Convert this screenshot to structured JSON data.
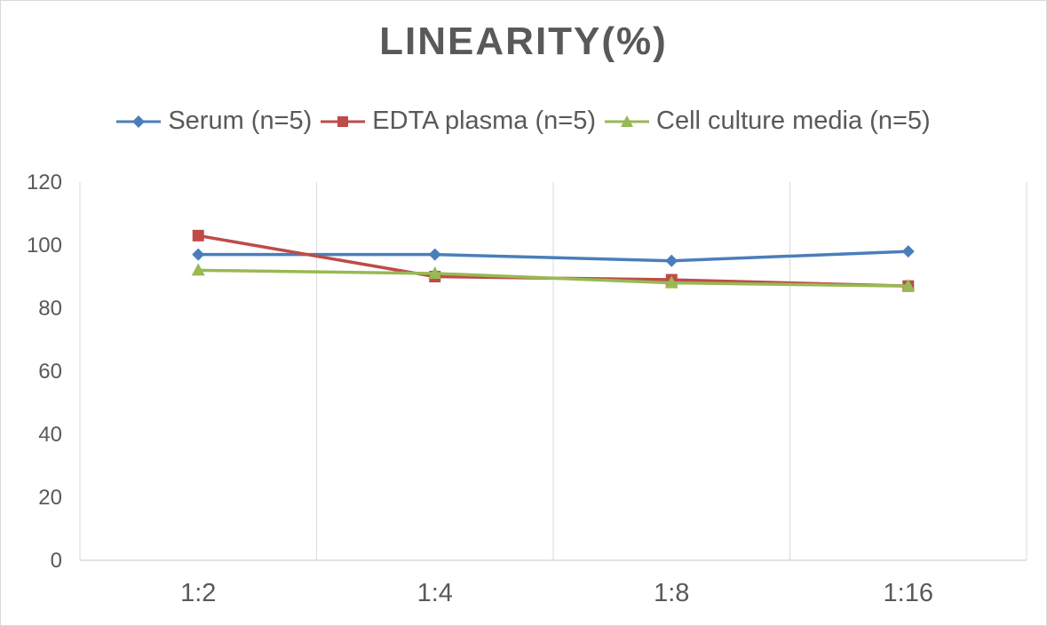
{
  "chart_data": {
    "type": "line",
    "title": "LINEARITY(%)",
    "xlabel": "",
    "ylabel": "",
    "categories": [
      "1:2",
      "1:4",
      "1:8",
      "1:16"
    ],
    "ylim": [
      0,
      120
    ],
    "yticks": [
      0,
      20,
      40,
      60,
      80,
      100,
      120
    ],
    "grid": "vertical",
    "legend_position": "top",
    "series": [
      {
        "name": "Serum (n=5)",
        "color": "#4a7ebb",
        "marker": "diamond",
        "values": [
          97,
          97,
          95,
          98
        ]
      },
      {
        "name": "EDTA plasma (n=5)",
        "color": "#be4b48",
        "marker": "square",
        "values": [
          103,
          90,
          89,
          87
        ]
      },
      {
        "name": "Cell culture media (n=5)",
        "color": "#98b954",
        "marker": "triangle",
        "values": [
          92,
          91,
          88,
          87
        ]
      }
    ]
  }
}
